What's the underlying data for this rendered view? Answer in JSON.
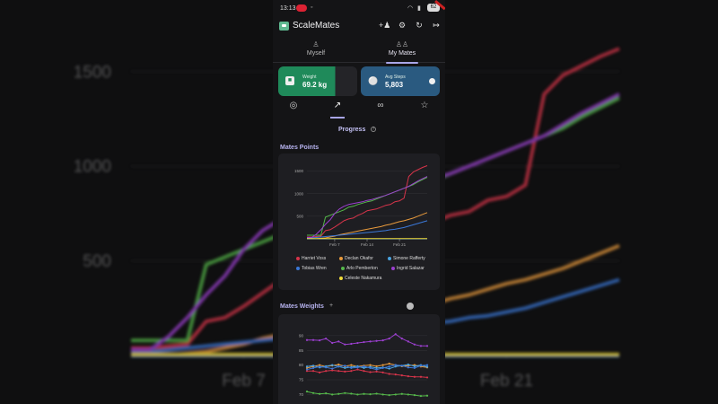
{
  "status": {
    "time": "13:13",
    "battery": "62"
  },
  "app": {
    "title": "ScaleMates"
  },
  "tabs": [
    {
      "label": "Myself"
    },
    {
      "label": "My Mates"
    }
  ],
  "cards": {
    "weight": {
      "label": "Weight",
      "value": "69.2 kg"
    },
    "steps": {
      "label": "Avg Steps",
      "value": "5,803"
    }
  },
  "progress_title": "Progress",
  "icons": {
    "top": [
      "add-person-icon",
      "gear-icon",
      "refresh-icon",
      "logout-icon"
    ],
    "subtabs": [
      "medal-icon",
      "trend-icon",
      "group-icon",
      "trophy-icon"
    ]
  },
  "chart_data": [
    {
      "type": "line",
      "title": "Mates Points",
      "x_ticks": [
        "Feb 7",
        "Feb 14",
        "Feb 21"
      ],
      "y_ticks": [
        500,
        1000,
        1500
      ],
      "ylim": [
        0,
        1650
      ],
      "x": [
        0,
        1,
        2,
        3,
        4,
        5,
        6,
        7,
        8,
        9,
        10,
        11,
        12,
        13,
        14,
        15,
        16,
        17,
        18,
        19,
        20,
        21,
        22,
        23,
        24,
        25,
        26
      ],
      "series": [
        {
          "name": "Harriet Voss",
          "color": "#d6344a",
          "values": [
            40,
            40,
            50,
            60,
            180,
            200,
            260,
            330,
            400,
            440,
            460,
            520,
            560,
            620,
            640,
            660,
            700,
            740,
            760,
            820,
            840,
            900,
            1380,
            1480,
            1530,
            1580,
            1620
          ]
        },
        {
          "name": "Declan Okafor",
          "color": "#e89a3c",
          "values": [
            0,
            0,
            0,
            10,
            20,
            40,
            60,
            90,
            110,
            130,
            150,
            170,
            190,
            210,
            230,
            250,
            270,
            300,
            320,
            350,
            380,
            400,
            430,
            460,
            500,
            540,
            580
          ]
        },
        {
          "name": "Simone Rafferty",
          "color": "#4aa3e0",
          "values": [
            0,
            0,
            0,
            0,
            0,
            0,
            0,
            0,
            0,
            0,
            0,
            0,
            0,
            0,
            0,
            0,
            0,
            0,
            0,
            0,
            0,
            0,
            0,
            0,
            0,
            0,
            0
          ]
        },
        {
          "name": "Tobias Wren",
          "color": "#3b78d8",
          "values": [
            20,
            20,
            30,
            40,
            50,
            60,
            70,
            80,
            90,
            100,
            110,
            120,
            130,
            140,
            150,
            160,
            170,
            180,
            200,
            210,
            230,
            250,
            280,
            310,
            340,
            370,
            400
          ]
        },
        {
          "name": "Arlo Pemberton",
          "color": "#55b84a",
          "values": [
            80,
            80,
            80,
            80,
            480,
            520,
            560,
            600,
            640,
            700,
            720,
            760,
            790,
            820,
            840,
            880,
            920,
            960,
            1000,
            1040,
            1080,
            1120,
            1160,
            1200,
            1260,
            1310,
            1360
          ]
        },
        {
          "name": "Ingrid Salazar",
          "color": "#9b3fcf",
          "values": [
            30,
            30,
            100,
            200,
            320,
            420,
            560,
            660,
            720,
            760,
            780,
            800,
            820,
            850,
            870,
            900,
            930,
            960,
            1000,
            1040,
            1080,
            1120,
            1160,
            1220,
            1280,
            1330,
            1380
          ]
        },
        {
          "name": "Celeste Nakamura",
          "color": "#f2dc3a",
          "values": [
            5,
            5,
            5,
            5,
            5,
            5,
            5,
            5,
            5,
            5,
            5,
            5,
            5,
            5,
            5,
            5,
            5,
            5,
            5,
            5,
            5,
            5,
            5,
            5,
            5,
            5,
            5
          ]
        }
      ]
    },
    {
      "type": "line",
      "title": "Mates Weights",
      "y_ticks": [
        70,
        75,
        80,
        85,
        90
      ],
      "ylim": [
        68,
        93
      ],
      "x": [
        0,
        1,
        2,
        3,
        4,
        5,
        6,
        7,
        8,
        9,
        10,
        11,
        12,
        13,
        14,
        15,
        16,
        17,
        18,
        19
      ],
      "series": [
        {
          "name": "Ingrid Salazar",
          "color": "#9b3fcf",
          "values": [
            88.5,
            88.5,
            88.4,
            89,
            87.5,
            88,
            87,
            87.2,
            87.5,
            87.8,
            88,
            88.2,
            88.4,
            89,
            90.5,
            89,
            88,
            87,
            86.5,
            86.5
          ]
        },
        {
          "name": "Harriet Voss",
          "color": "#d6344a",
          "values": [
            78,
            78,
            77.5,
            78,
            78.2,
            78,
            77.8,
            78,
            78.5,
            78,
            77.6,
            77.8,
            77.5,
            77,
            76.8,
            76.5,
            76.2,
            76,
            76,
            75.8
          ]
        },
        {
          "name": "Declan Okafor",
          "color": "#e89a3c",
          "values": [
            79,
            79.5,
            80,
            79.5,
            79.8,
            80.2,
            79.6,
            80,
            79.5,
            79.8,
            80,
            79.6,
            80,
            80.5,
            80,
            79.6,
            79.8,
            80,
            79.5,
            79.2
          ]
        },
        {
          "name": "Simone Rafferty",
          "color": "#4aa3e0",
          "values": [
            79.5,
            79.8,
            79.2,
            79.6,
            80,
            79.5,
            79,
            79.3,
            79.6,
            79,
            79.4,
            79,
            79.2,
            78.8,
            79.5,
            79.8,
            80.2,
            79.6,
            80,
            79.4
          ]
        },
        {
          "name": "Tobias Wren",
          "color": "#3b78d8",
          "values": [
            78.5,
            79,
            79.5,
            79.2,
            78.8,
            79.5,
            79.8,
            79,
            79.2,
            79.6,
            79,
            78.5,
            79,
            79.5,
            80,
            79.8,
            79.2,
            79,
            79.8,
            80
          ]
        },
        {
          "name": "Arlo Pemberton",
          "color": "#55b84a",
          "values": [
            71,
            70.5,
            70.2,
            70.4,
            70,
            70.2,
            70.5,
            70.3,
            70,
            70.2,
            70.1,
            70.3,
            70,
            69.8,
            70,
            70.2,
            70,
            69.8,
            69.5,
            69.6
          ]
        }
      ]
    }
  ]
}
